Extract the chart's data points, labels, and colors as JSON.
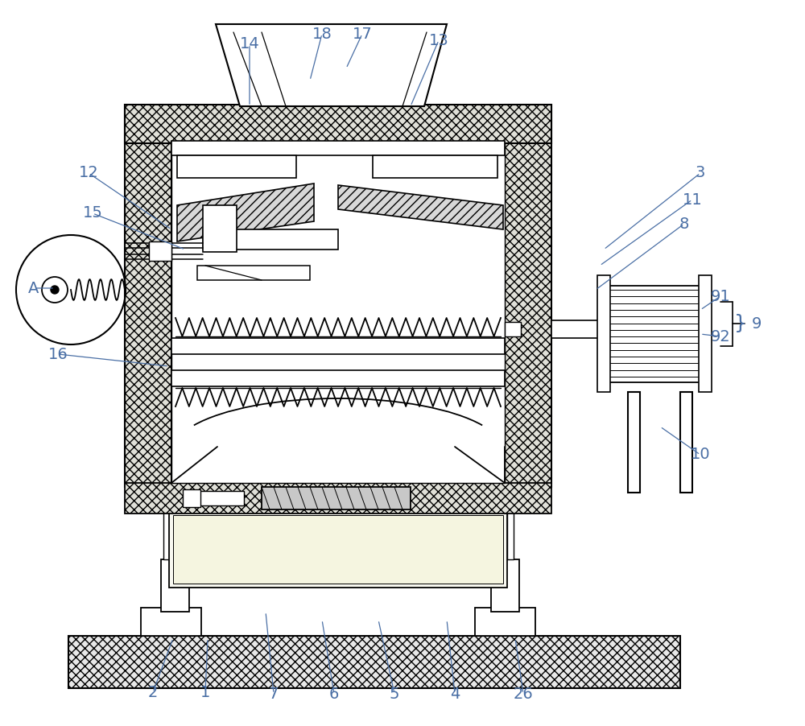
{
  "bg_color": "#ffffff",
  "line_color": "#000000",
  "label_color": "#4a6fa5",
  "figsize": [
    10.0,
    9.02
  ],
  "dpi": 100
}
